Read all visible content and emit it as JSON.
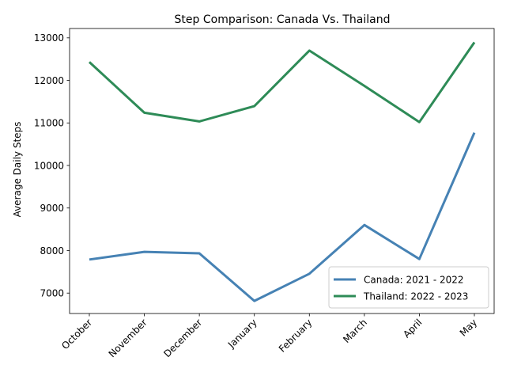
{
  "chart_data": {
    "type": "line",
    "title": "Step Comparison: Canada Vs. Thailand",
    "xlabel": "",
    "ylabel": "Average Daily Steps",
    "categories": [
      "October",
      "November",
      "December",
      "January",
      "February",
      "March",
      "April",
      "May"
    ],
    "ylim": [
      6520,
      13220
    ],
    "yticks": [
      7000,
      8000,
      9000,
      10000,
      11000,
      12000,
      13000
    ],
    "grid": false,
    "legend_position": "lower-right",
    "series": [
      {
        "name": "Canada: 2021 - 2022",
        "color": "#4682b4",
        "values": [
          7790,
          7970,
          7935,
          6815,
          7455,
          8600,
          7800,
          10770
        ]
      },
      {
        "name": "Thailand: 2022 - 2023",
        "color": "#2e8b57",
        "values": [
          12430,
          11240,
          11035,
          11395,
          12700,
          11870,
          11020,
          12895
        ]
      }
    ]
  }
}
